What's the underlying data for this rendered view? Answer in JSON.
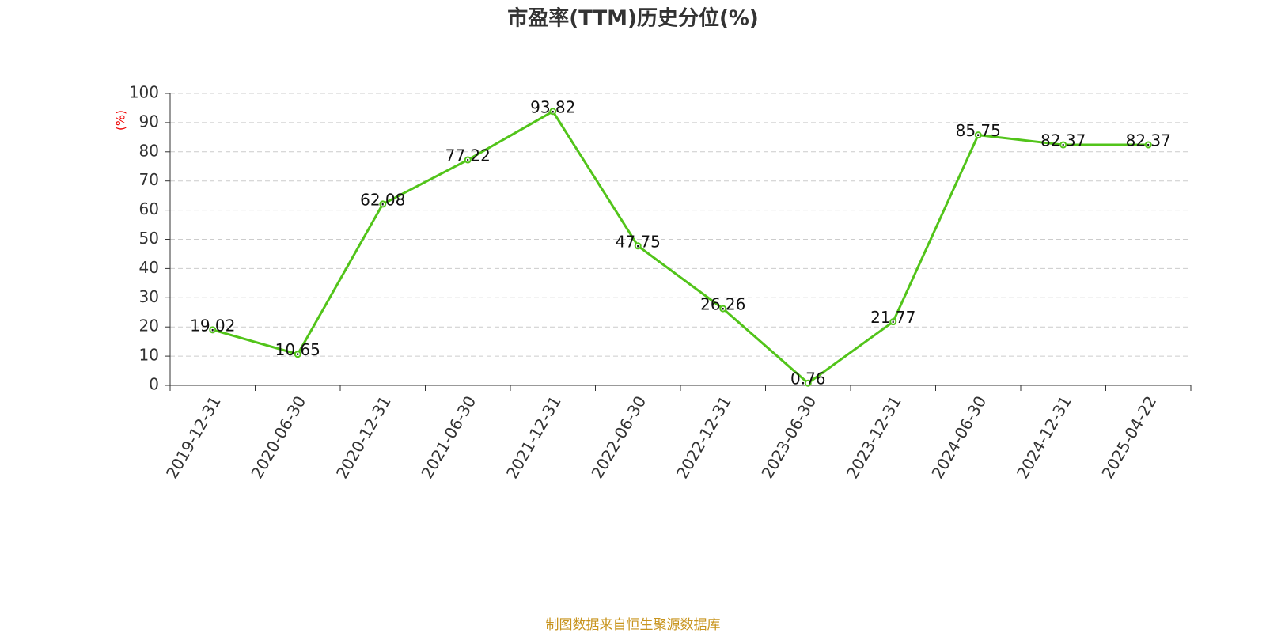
{
  "chart_data": {
    "type": "line",
    "title": "市盈率(TTM)历史分位(%)",
    "y_label": "(%)",
    "footer": "制图数据来自恒生聚源数据库",
    "categories": [
      "2019-12-31",
      "2020-06-30",
      "2020-12-31",
      "2021-06-30",
      "2021-12-31",
      "2022-06-30",
      "2022-12-31",
      "2023-06-30",
      "2023-12-31",
      "2024-06-30",
      "2024-12-31",
      "2025-04-22"
    ],
    "values": [
      19.02,
      10.65,
      62.08,
      77.22,
      93.82,
      47.75,
      26.26,
      0.76,
      21.77,
      85.75,
      82.37,
      82.37
    ],
    "color": "#52c41a",
    "ylim": [
      0,
      100
    ],
    "yticks": [
      0,
      10,
      20,
      30,
      40,
      50,
      60,
      70,
      80,
      90,
      100
    ],
    "grid": true
  }
}
